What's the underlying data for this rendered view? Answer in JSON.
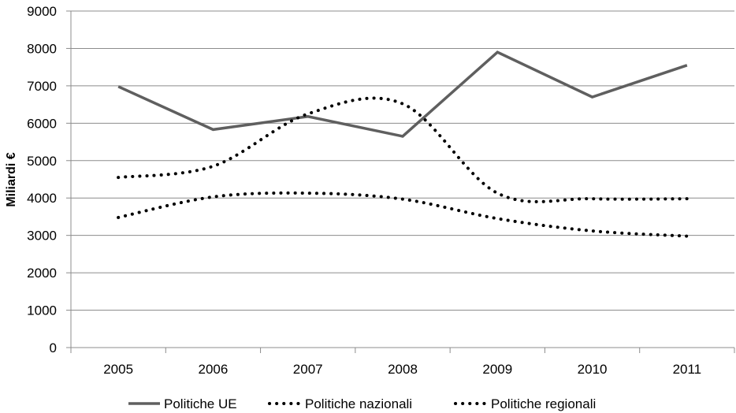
{
  "chart_data": {
    "type": "line",
    "title": "",
    "xlabel": "",
    "ylabel": "Miliardi  €",
    "categories": [
      "2005",
      "2006",
      "2007",
      "2008",
      "2009",
      "2010",
      "2011"
    ],
    "ylim": [
      0,
      9000
    ],
    "yticks": [
      0,
      1000,
      2000,
      3000,
      4000,
      5000,
      6000,
      7000,
      8000,
      9000
    ],
    "grid": "horizontal",
    "legend": "bottom",
    "series": [
      {
        "name": "Politiche UE",
        "style": "solid",
        "color": "#5f5f5f",
        "values": [
          6980,
          5830,
          6180,
          5650,
          7900,
          6700,
          7550
        ]
      },
      {
        "name": "Politiche nazionali",
        "style": "dotted",
        "color": "#000000",
        "values": [
          4550,
          4850,
          6250,
          6520,
          4130,
          3980,
          3980
        ]
      },
      {
        "name": "Politiche regionali",
        "style": "dotted",
        "color": "#000000",
        "values": [
          3480,
          4030,
          4130,
          3970,
          3450,
          3120,
          2980
        ]
      }
    ]
  }
}
